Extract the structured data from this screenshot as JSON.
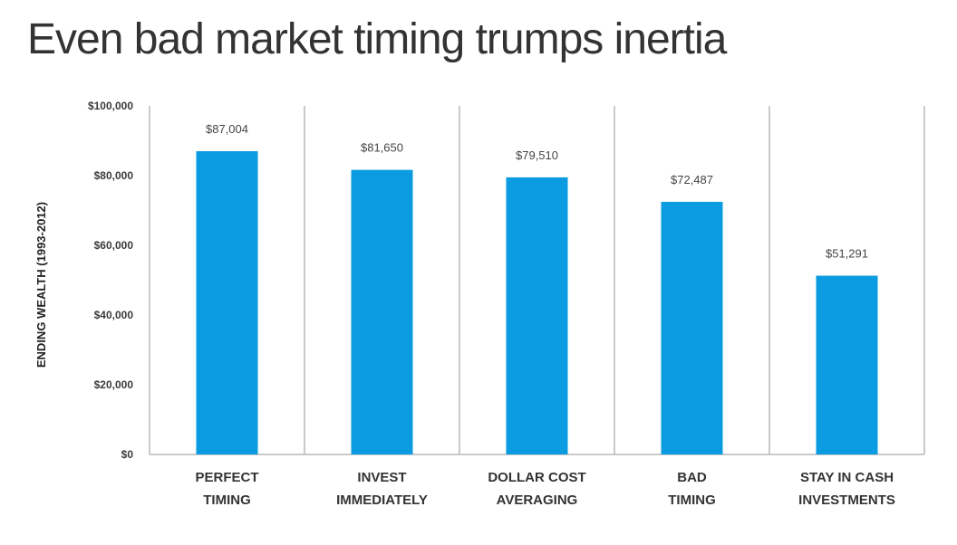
{
  "title": "Even bad market timing trumps inertia",
  "chart_data": {
    "type": "bar",
    "title": "Even bad market timing trumps inertia",
    "ylabel": "ENDING WEALTH (1993-2012)",
    "xlabel": "",
    "categories": [
      [
        "PERFECT",
        "TIMING"
      ],
      [
        "INVEST",
        "IMMEDIATELY"
      ],
      [
        "DOLLAR COST",
        "AVERAGING"
      ],
      [
        "BAD",
        "TIMING"
      ],
      [
        "STAY IN CASH",
        "INVESTMENTS"
      ]
    ],
    "values": [
      87004,
      81650,
      79510,
      72487,
      51291
    ],
    "data_labels": [
      "$87,004",
      "$81,650",
      "$79,510",
      "$72,487",
      "$51,291"
    ],
    "ylim": [
      0,
      100000
    ],
    "yticks": [
      0,
      20000,
      40000,
      60000,
      80000,
      100000
    ],
    "ytick_labels": [
      "$0",
      "$20,000",
      "$40,000",
      "$60,000",
      "$80,000",
      "$100,000"
    ],
    "bar_color": "#0a9be0",
    "grid": false,
    "category_separators": true
  }
}
